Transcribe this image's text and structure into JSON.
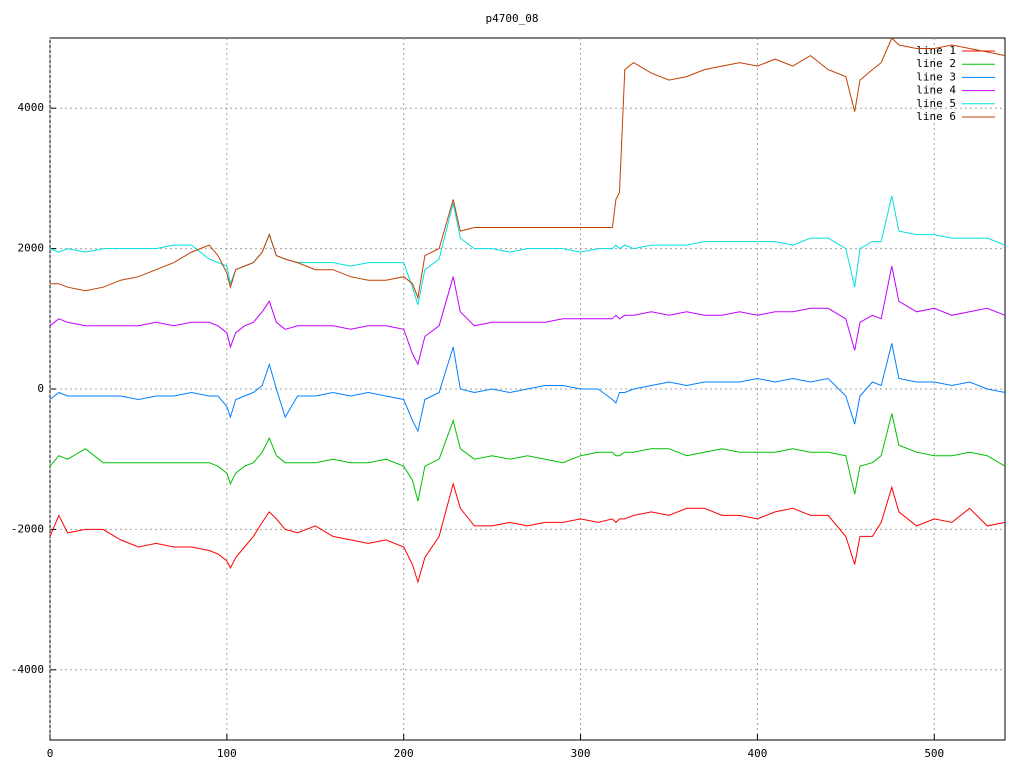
{
  "chart_data": {
    "type": "line",
    "title": "p4700_08",
    "x": [
      0,
      5,
      10,
      20,
      30,
      40,
      50,
      60,
      70,
      80,
      90,
      95,
      100,
      102,
      105,
      110,
      115,
      120,
      124,
      128,
      133,
      140,
      150,
      160,
      170,
      180,
      190,
      200,
      205,
      208,
      212,
      220,
      228,
      232,
      240,
      250,
      260,
      270,
      280,
      290,
      300,
      310,
      318,
      320,
      322,
      325,
      330,
      340,
      350,
      360,
      370,
      380,
      390,
      400,
      410,
      420,
      430,
      440,
      450,
      455,
      458,
      465,
      470,
      476,
      480,
      490,
      500,
      510,
      520,
      530,
      540
    ],
    "series": [
      {
        "name": "line 1",
        "color": "#ff0000",
        "values": [
          -2100,
          -1800,
          -2050,
          -2000,
          -2000,
          -2150,
          -2250,
          -2200,
          -2250,
          -2250,
          -2300,
          -2350,
          -2450,
          -2550,
          -2400,
          -2250,
          -2100,
          -1900,
          -1750,
          -1850,
          -2000,
          -2050,
          -1950,
          -2100,
          -2150,
          -2200,
          -2150,
          -2250,
          -2500,
          -2750,
          -2400,
          -2100,
          -1350,
          -1700,
          -1950,
          -1950,
          -1900,
          -1950,
          -1900,
          -1900,
          -1850,
          -1900,
          -1850,
          -1900,
          -1850,
          -1850,
          -1800,
          -1750,
          -1800,
          -1700,
          -1700,
          -1800,
          -1800,
          -1850,
          -1750,
          -1700,
          -1800,
          -1800,
          -2100,
          -2500,
          -2100,
          -2100,
          -1900,
          -1400,
          -1750,
          -1950,
          -1850,
          -1900,
          -1700,
          -1950,
          -1900
        ]
      },
      {
        "name": "line 2",
        "color": "#00c000",
        "values": [
          -1100,
          -950,
          -1000,
          -850,
          -1050,
          -1050,
          -1050,
          -1050,
          -1050,
          -1050,
          -1050,
          -1100,
          -1200,
          -1350,
          -1200,
          -1100,
          -1050,
          -900,
          -700,
          -950,
          -1050,
          -1050,
          -1050,
          -1000,
          -1050,
          -1050,
          -1000,
          -1100,
          -1300,
          -1600,
          -1100,
          -1000,
          -450,
          -850,
          -1000,
          -950,
          -1000,
          -950,
          -1000,
          -1050,
          -950,
          -900,
          -900,
          -950,
          -950,
          -900,
          -900,
          -850,
          -850,
          -950,
          -900,
          -850,
          -900,
          -900,
          -900,
          -850,
          -900,
          -900,
          -950,
          -1500,
          -1100,
          -1050,
          -950,
          -350,
          -800,
          -900,
          -950,
          -950,
          -900,
          -950,
          -1100
        ]
      },
      {
        "name": "line 3",
        "color": "#0080ff",
        "values": [
          -150,
          -50,
          -100,
          -100,
          -100,
          -100,
          -150,
          -100,
          -100,
          -50,
          -100,
          -100,
          -250,
          -400,
          -150,
          -100,
          -50,
          50,
          350,
          0,
          -400,
          -100,
          -100,
          -50,
          -100,
          -50,
          -100,
          -150,
          -450,
          -600,
          -150,
          -50,
          600,
          0,
          -50,
          0,
          -50,
          0,
          50,
          50,
          0,
          0,
          -150,
          -200,
          -50,
          -50,
          0,
          50,
          100,
          50,
          100,
          100,
          100,
          150,
          100,
          150,
          100,
          150,
          -100,
          -500,
          -100,
          100,
          50,
          650,
          150,
          100,
          100,
          50,
          100,
          0,
          -50
        ]
      },
      {
        "name": "line 4",
        "color": "#c000ff",
        "values": [
          900,
          1000,
          950,
          900,
          900,
          900,
          900,
          950,
          900,
          950,
          950,
          900,
          800,
          600,
          800,
          900,
          950,
          1100,
          1250,
          950,
          850,
          900,
          900,
          900,
          850,
          900,
          900,
          850,
          500,
          350,
          750,
          900,
          1600,
          1100,
          900,
          950,
          950,
          950,
          950,
          1000,
          1000,
          1000,
          1000,
          1050,
          1000,
          1050,
          1050,
          1100,
          1050,
          1100,
          1050,
          1050,
          1100,
          1050,
          1100,
          1100,
          1150,
          1150,
          1000,
          550,
          950,
          1050,
          1000,
          1750,
          1250,
          1100,
          1150,
          1050,
          1100,
          1150,
          1050
        ]
      },
      {
        "name": "line 5",
        "color": "#00e0e0",
        "values": [
          2000,
          1950,
          2000,
          1950,
          2000,
          2000,
          2000,
          2000,
          2050,
          2050,
          1850,
          1800,
          1750,
          1500,
          1700,
          1750,
          1800,
          1950,
          2200,
          1900,
          1850,
          1800,
          1800,
          1800,
          1750,
          1800,
          1800,
          1800,
          1450,
          1200,
          1700,
          1850,
          2650,
          2150,
          2000,
          2000,
          1950,
          2000,
          2000,
          2000,
          1950,
          2000,
          2000,
          2050,
          2000,
          2050,
          2000,
          2050,
          2050,
          2050,
          2100,
          2100,
          2100,
          2100,
          2100,
          2050,
          2150,
          2150,
          2000,
          1450,
          2000,
          2100,
          2100,
          2750,
          2250,
          2200,
          2200,
          2150,
          2150,
          2150,
          2050
        ]
      },
      {
        "name": "line 6",
        "color": "#c04000",
        "values": [
          1500,
          1500,
          1450,
          1400,
          1450,
          1550,
          1600,
          1700,
          1800,
          1950,
          2050,
          1900,
          1650,
          1450,
          1700,
          1750,
          1800,
          1950,
          2200,
          1900,
          1850,
          1800,
          1700,
          1700,
          1600,
          1550,
          1550,
          1600,
          1500,
          1300,
          1900,
          2000,
          2700,
          2250,
          2300,
          2300,
          2300,
          2300,
          2300,
          2300,
          2300,
          2300,
          2300,
          2700,
          2800,
          4550,
          4650,
          4500,
          4400,
          4450,
          4550,
          4600,
          4650,
          4600,
          4700,
          4600,
          4750,
          4550,
          4450,
          3950,
          4400,
          4550,
          4650,
          5000,
          4900,
          4850,
          4850,
          4900,
          4850,
          4800,
          4750
        ]
      }
    ],
    "xlim": [
      0,
      540
    ],
    "xticks": [
      0,
      100,
      200,
      300,
      400,
      500
    ],
    "ylim": [
      -5000,
      5000
    ],
    "yticks": [
      -4000,
      -2000,
      0,
      2000,
      4000
    ],
    "grid": true,
    "legend": "top-right"
  }
}
